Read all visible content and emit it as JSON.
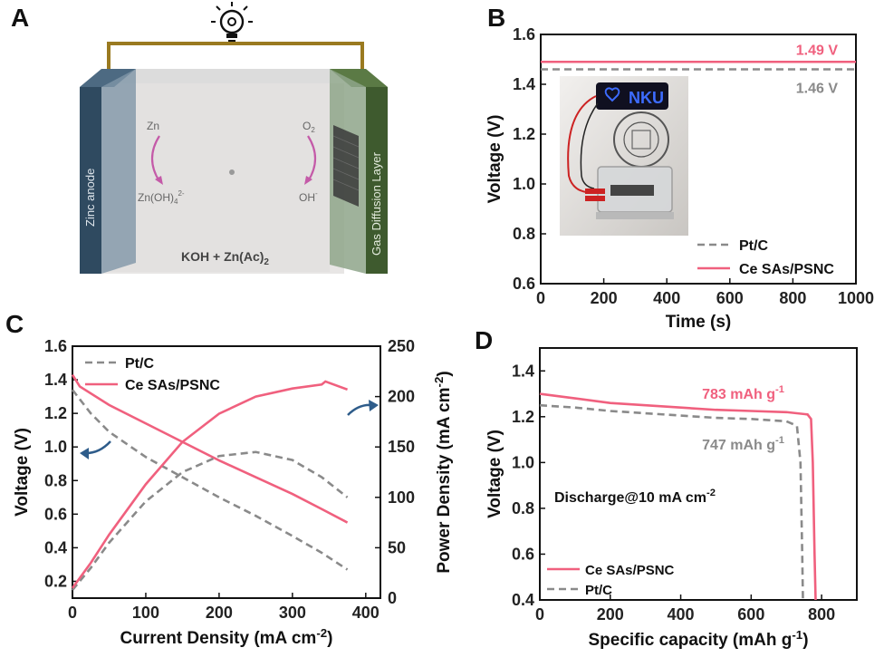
{
  "panels": {
    "a": "A",
    "b": "B",
    "c": "C",
    "d": "D"
  },
  "panel_a": {
    "anode_label": "Zinc anode",
    "cathode_label": "Gas Diffusion Layer",
    "zn": "Zn",
    "zincate": "Zn(OH)",
    "zincate_sub": "4",
    "zincate_sup": "2-",
    "o2": "O",
    "o2_sub": "2",
    "oh": "OH",
    "oh_sup": "-",
    "electrolyte": "KOH + Zn(Ac)",
    "electrolyte_sub": "2",
    "colors": {
      "anode": "#2f4a60",
      "cathode": "#3e5a2e",
      "wire": "#9a7a20",
      "arrow": "#c45aa8"
    }
  },
  "panel_b_inset": {
    "badge_text": "NKU"
  },
  "chart_data": [
    {
      "id": "B",
      "type": "line",
      "xlabel": "Time  (s)",
      "ylabel": "Voltage  (V)",
      "xlim": [
        0,
        1000
      ],
      "ylim": [
        0.6,
        1.6
      ],
      "xticks": [
        "0",
        "200",
        "400",
        "600",
        "800",
        "1000"
      ],
      "yticks": [
        "0.6",
        "0.8",
        "1.0",
        "1.2",
        "1.4",
        "1.6"
      ],
      "series": [
        {
          "name": "Pt/C",
          "style": "dashed",
          "color": "#8a8a8a",
          "x": [
            0,
            1000
          ],
          "y": [
            1.46,
            1.46
          ]
        },
        {
          "name": "Ce SAs/PSNC",
          "style": "solid",
          "color": "#f0607e",
          "x": [
            0,
            1000
          ],
          "y": [
            1.49,
            1.49
          ]
        }
      ],
      "annotations": [
        {
          "text": "1.49 V",
          "color": "#f0607e"
        },
        {
          "text": "1.46 V",
          "color": "#8a8a8a"
        }
      ],
      "legend": "bottom-right"
    },
    {
      "id": "C",
      "type": "line",
      "xlabel": "Current Density (mA cm",
      "xlabel_sup": "-2",
      "xlabel_end": ")",
      "ylabel": "Voltage (V)",
      "y2label": "Power Density (mA cm",
      "y2label_sup": "-2",
      "y2label_end": ")",
      "xlim": [
        0,
        420
      ],
      "ylim": [
        0.1,
        1.6
      ],
      "y2lim": [
        0,
        250
      ],
      "xticks": [
        "0",
        "100",
        "200",
        "300",
        "400"
      ],
      "yticks": [
        "0.2",
        "0.4",
        "0.6",
        "0.8",
        "1.0",
        "1.2",
        "1.4",
        "1.6"
      ],
      "y2ticks": [
        "0",
        "50",
        "100",
        "150",
        "200",
        "250"
      ],
      "series": [
        {
          "name": "Pt/C",
          "axis": "left",
          "style": "dashed",
          "color": "#8a8a8a",
          "x": [
            0,
            25,
            50,
            100,
            150,
            200,
            250,
            300,
            340,
            375
          ],
          "y": [
            1.34,
            1.2,
            1.09,
            0.94,
            0.82,
            0.7,
            0.59,
            0.47,
            0.37,
            0.27
          ]
        },
        {
          "name": "Ce SAs/PSNC",
          "axis": "left",
          "style": "solid",
          "color": "#f0607e",
          "x": [
            0,
            10,
            50,
            100,
            150,
            200,
            250,
            300,
            340,
            375
          ],
          "y": [
            1.43,
            1.36,
            1.25,
            1.14,
            1.03,
            0.92,
            0.82,
            0.72,
            0.63,
            0.55
          ]
        },
        {
          "name": "Pt/C power",
          "axis": "right",
          "style": "dashed",
          "color": "#8a8a8a",
          "x": [
            0,
            25,
            50,
            100,
            150,
            200,
            250,
            300,
            340,
            375
          ],
          "y": [
            8,
            30,
            55,
            96,
            125,
            141,
            145,
            137,
            120,
            100
          ]
        },
        {
          "name": "Ce SAs/PSNC power",
          "axis": "right",
          "style": "solid",
          "color": "#f0607e",
          "x": [
            0,
            25,
            50,
            100,
            150,
            200,
            250,
            300,
            340,
            345,
            375
          ],
          "y": [
            10,
            35,
            63,
            113,
            155,
            183,
            200,
            208,
            212,
            215,
            207
          ]
        }
      ],
      "legend_entries": [
        "Pt/C",
        "Ce SAs/PSNC"
      ],
      "legend": "top-left"
    },
    {
      "id": "D",
      "type": "line",
      "xlabel": "Specific capacity (mAh g",
      "xlabel_sup": "-1",
      "xlabel_end": ")",
      "ylabel": "Voltage (V)",
      "xlim": [
        0,
        900
      ],
      "ylim": [
        0.4,
        1.5
      ],
      "xticks": [
        "0",
        "200",
        "400",
        "600",
        "800"
      ],
      "yticks": [
        "0.4",
        "0.6",
        "0.8",
        "1.0",
        "1.2",
        "1.4"
      ],
      "series": [
        {
          "name": "Ce SAs/PSNC",
          "style": "solid",
          "color": "#f0607e",
          "x": [
            0,
            100,
            200,
            300,
            400,
            500,
            600,
            700,
            760,
            770,
            775,
            780,
            783
          ],
          "y": [
            1.3,
            1.28,
            1.26,
            1.25,
            1.24,
            1.23,
            1.225,
            1.22,
            1.21,
            1.19,
            1.0,
            0.6,
            0.4
          ]
        },
        {
          "name": "Pt/C",
          "style": "dashed",
          "color": "#8a8a8a",
          "x": [
            0,
            100,
            200,
            300,
            400,
            500,
            600,
            700,
            730,
            740,
            745,
            747
          ],
          "y": [
            1.25,
            1.24,
            1.225,
            1.215,
            1.205,
            1.195,
            1.19,
            1.18,
            1.16,
            1.0,
            0.6,
            0.4
          ]
        }
      ],
      "annotations": [
        {
          "text": "783 mAh g",
          "sup": "-1",
          "color": "#f0607e"
        },
        {
          "text": "747 mAh g",
          "sup": "-1",
          "color": "#8a8a8a"
        },
        {
          "text": "Discharge@10 mA cm",
          "sup": "-2",
          "color": "#111"
        }
      ],
      "legend": "bottom-left"
    }
  ]
}
